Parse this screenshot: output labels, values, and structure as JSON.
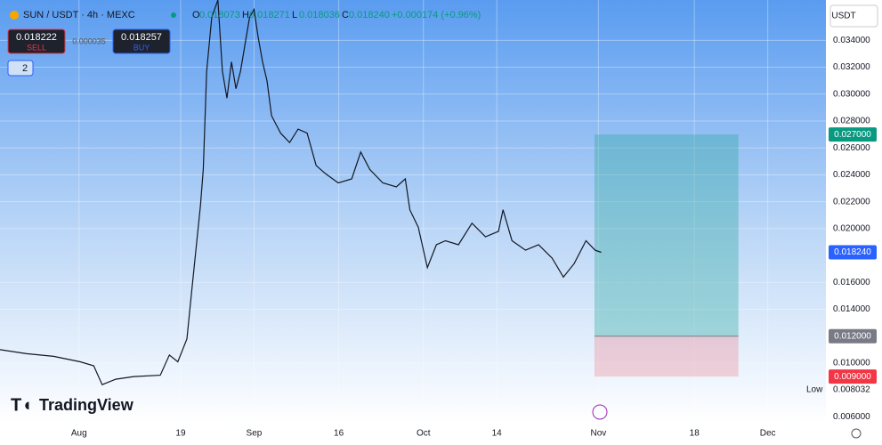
{
  "header": {
    "symbol": "SUN / USDT · 4h · MEXC",
    "ohlc": [
      {
        "key": "O",
        "value": "0.018073"
      },
      {
        "key": "H",
        "value": "0.018271"
      },
      {
        "key": "L",
        "value": "0.018036"
      },
      {
        "key": "C",
        "value": "0.018240"
      }
    ],
    "change": "+0.000174 (+0.96%)",
    "sell": {
      "price": "0.018222",
      "label": "SELL"
    },
    "spread": "0.000035",
    "buy": {
      "price": "0.018257",
      "label": "BUY"
    },
    "indicators": "2",
    "currency": "USDT",
    "brand": "TradingView"
  },
  "chart_data": {
    "type": "line",
    "color": "#131722",
    "x": [
      199.0,
      203.7,
      208.5,
      213.2,
      215.6,
      217.1,
      219.5,
      222.7,
      227.4,
      229.0,
      230.5,
      232.1,
      232.9,
      233.7,
      234.5,
      235.0,
      235.6,
      236.5,
      237.6,
      238.4,
      239.2,
      240.0,
      240.8,
      241.6,
      243.2,
      244.0,
      244.7,
      245.5,
      246.3,
      247.1,
      248.7,
      250.3,
      251.8,
      253.4,
      255.0,
      256.6,
      258.9,
      261.3,
      262.9,
      264.5,
      266.8,
      269.2,
      270.8,
      271.6,
      273.1,
      274.7,
      276.3,
      277.9,
      280.2,
      282.6,
      285.0,
      287.3,
      288.1,
      289.7,
      292.1,
      294.4,
      296.8,
      298.8,
      300.7,
      302.8,
      304.4,
      305.5
    ],
    "values": [
      0.011,
      0.0107,
      0.0105,
      0.0101,
      0.0098,
      0.0084,
      0.0088,
      0.009,
      0.0091,
      0.0106,
      0.0101,
      0.0118,
      0.0151,
      0.0184,
      0.0217,
      0.0244,
      0.0317,
      0.0357,
      0.037,
      0.0317,
      0.0297,
      0.0324,
      0.0304,
      0.0317,
      0.0357,
      0.0363,
      0.0343,
      0.0324,
      0.031,
      0.0284,
      0.0271,
      0.0264,
      0.0274,
      0.0271,
      0.0247,
      0.0241,
      0.0234,
      0.0237,
      0.0257,
      0.0244,
      0.0234,
      0.0231,
      0.0237,
      0.0214,
      0.0201,
      0.0171,
      0.0188,
      0.0191,
      0.0188,
      0.0204,
      0.0194,
      0.0198,
      0.0214,
      0.0191,
      0.0184,
      0.0188,
      0.0178,
      0.0164,
      0.0174,
      0.0191,
      0.0184,
      0.01824
    ],
    "xlim": [
      199,
      345.3
    ],
    "ylim": [
      0.0055,
      0.037
    ],
    "xticks": [
      {
        "value": 213,
        "label": "Aug"
      },
      {
        "value": 231,
        "label": "19"
      },
      {
        "value": 244,
        "label": "Sep"
      },
      {
        "value": 259,
        "label": "16"
      },
      {
        "value": 274,
        "label": "Oct"
      },
      {
        "value": 287,
        "label": "14"
      },
      {
        "value": 305,
        "label": "Nov"
      },
      {
        "value": 322,
        "label": "18"
      },
      {
        "value": 335,
        "label": "Dec"
      }
    ],
    "yticks": [
      {
        "value": 0.006,
        "label": "0.006000"
      },
      {
        "value": 0.01,
        "label": "0.010000"
      },
      {
        "value": 0.014,
        "label": "0.014000"
      },
      {
        "value": 0.016,
        "label": "0.016000"
      },
      {
        "value": 0.02,
        "label": "0.020000"
      },
      {
        "value": 0.022,
        "label": "0.022000"
      },
      {
        "value": 0.024,
        "label": "0.024000"
      },
      {
        "value": 0.026,
        "label": "0.026000"
      },
      {
        "value": 0.028,
        "label": "0.028000"
      },
      {
        "value": 0.03,
        "label": "0.030000"
      },
      {
        "value": 0.032,
        "label": "0.032000"
      },
      {
        "value": 0.034,
        "label": "0.034000"
      }
    ],
    "grid": true,
    "position": {
      "start": 304.3,
      "end": 329.8,
      "target": 0.027,
      "entry": 0.012,
      "stop": 0.009,
      "profit_color": "#26a69a",
      "loss_color": "#f23645"
    },
    "price_labels": [
      {
        "value": 0.027,
        "label": "0.027000",
        "color": "#089981"
      },
      {
        "value": 0.01824,
        "label": "0.018240",
        "color": "#2962ff"
      },
      {
        "value": 0.012,
        "label": "0.012000",
        "color": "#787b86"
      },
      {
        "value": 0.009,
        "label": "0.009000",
        "color": "#f23645"
      }
    ],
    "low": {
      "name": "Low",
      "value": 0.008032,
      "label": "0.008032"
    }
  }
}
